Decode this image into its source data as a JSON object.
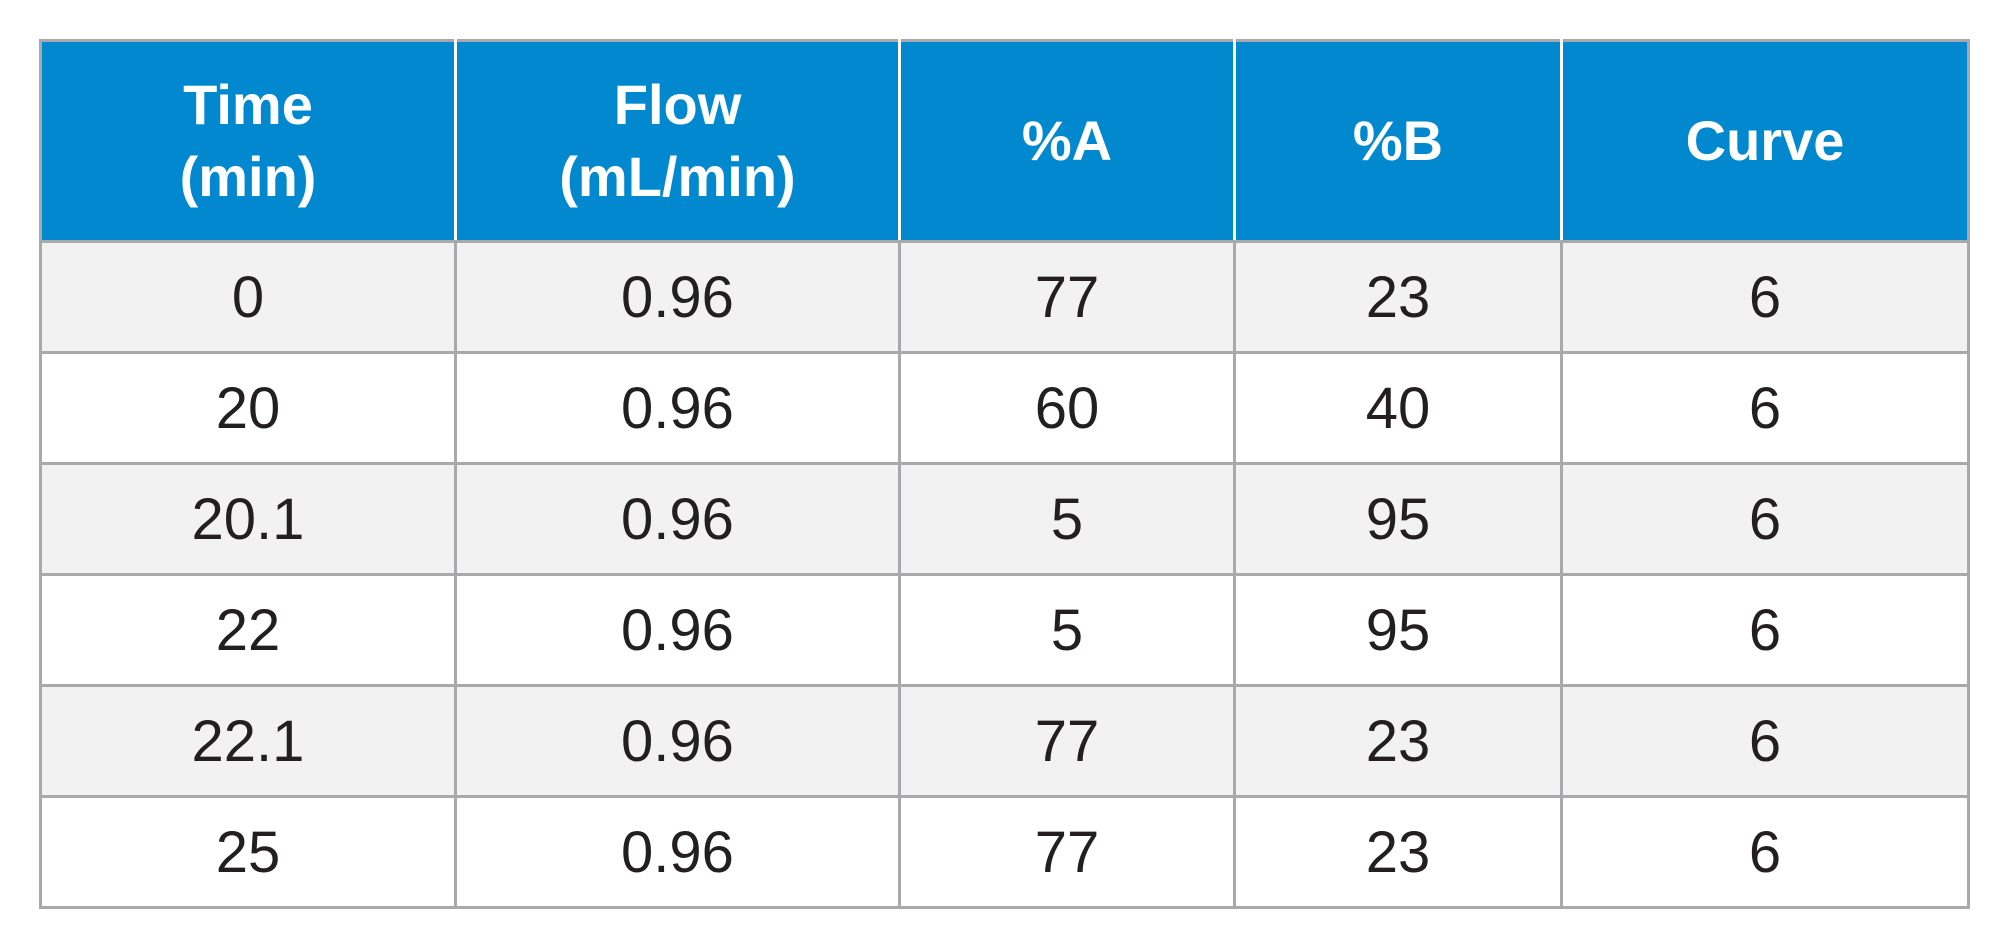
{
  "table": {
    "headers": [
      {
        "line1": "Time",
        "line2": "(min)"
      },
      {
        "line1": "Flow",
        "line2": "(mL/min)"
      },
      {
        "line1": "%A",
        "line2": ""
      },
      {
        "line1": "%B",
        "line2": ""
      },
      {
        "line1": "Curve",
        "line2": ""
      }
    ],
    "rows": [
      [
        "0",
        "0.96",
        "77",
        "23",
        "6"
      ],
      [
        "20",
        "0.96",
        "60",
        "40",
        "6"
      ],
      [
        "20.1",
        "0.96",
        "5",
        "95",
        "6"
      ],
      [
        "22",
        "0.96",
        "5",
        "95",
        "6"
      ],
      [
        "22.1",
        "0.96",
        "77",
        "23",
        "6"
      ],
      [
        "25",
        "0.96",
        "77",
        "23",
        "6"
      ]
    ]
  },
  "colors": {
    "header_background": "#0288cf",
    "header_text": "#ffffff",
    "odd_row_background": "#f2f2f3",
    "even_row_background": "#ffffff",
    "border": "#a9a9ab",
    "body_text": "#231f20"
  }
}
